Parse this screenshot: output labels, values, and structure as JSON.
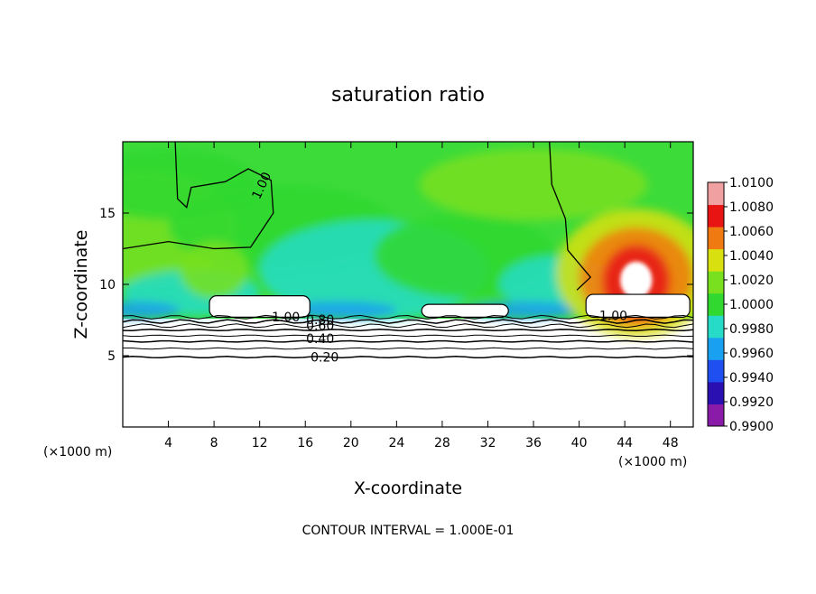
{
  "chart_data": {
    "type": "heatmap",
    "title": "saturation ratio",
    "xlabel": "X-coordinate",
    "ylabel": "Z-coordinate",
    "x_unit_left": "(×1000 m)",
    "x_unit_right": "(×1000 m)",
    "xlim": [
      0,
      50
    ],
    "ylim": [
      0,
      20
    ],
    "x_ticks": [
      4,
      8,
      12,
      16,
      20,
      24,
      28,
      32,
      36,
      40,
      44,
      48
    ],
    "y_ticks": [
      5,
      10,
      15
    ],
    "footer": "CONTOUR INTERVAL = 1.000E-01",
    "colorbar": {
      "min": 0.99,
      "max": 1.01,
      "labels": [
        "1.0100",
        "1.0080",
        "1.0060",
        "1.0040",
        "1.0020",
        "1.0000",
        "0.9980",
        "0.9960",
        "0.9940",
        "0.9920",
        "0.9900"
      ],
      "colors": [
        "#8a1aa8",
        "#2a10b0",
        "#1f4ff0",
        "#1aa0f0",
        "#26dcc8",
        "#30d830",
        "#78e01e",
        "#d8e010",
        "#f07a12",
        "#e81414",
        "#f0a0a0"
      ]
    },
    "contour_labels": [
      "1.00",
      "1.00",
      "1.00",
      "0.80",
      "0.60",
      "0.40",
      "0.20"
    ],
    "contours": [
      {
        "level": 0.2,
        "z": 4.9
      },
      {
        "level": 0.3,
        "z": 5.5
      },
      {
        "level": 0.4,
        "z": 6.0
      },
      {
        "level": 0.5,
        "z": 6.4
      },
      {
        "level": 0.6,
        "z": 6.8
      },
      {
        "level": 0.7,
        "z": 7.1
      },
      {
        "level": 0.8,
        "z": 7.4
      },
      {
        "level": 0.9,
        "z": 7.7
      }
    ],
    "clouds": [
      {
        "x0": 7.6,
        "x1": 16.4,
        "z0": 7.7,
        "z1": 9.2
      },
      {
        "x0": 26.2,
        "x1": 33.8,
        "z0": 7.7,
        "z1": 8.6
      },
      {
        "x0": 40.6,
        "x1": 49.7,
        "z0": 7.7,
        "z1": 9.3
      }
    ],
    "max_region": {
      "x": 45,
      "z": 10.3,
      "value": 1.0085
    }
  }
}
